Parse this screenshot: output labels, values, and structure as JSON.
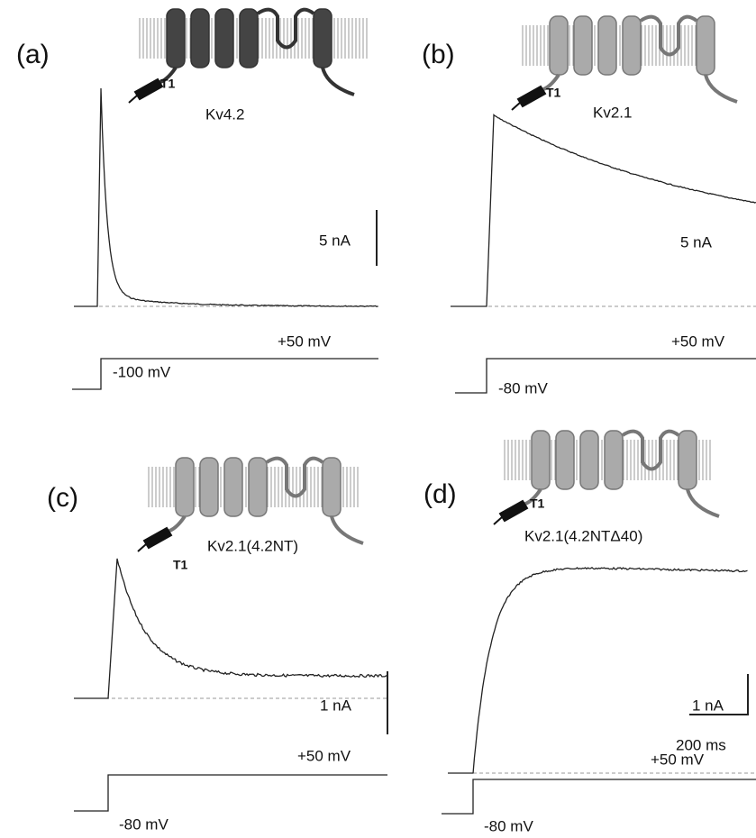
{
  "panels": [
    {
      "label": "(a)",
      "domain": "T1",
      "construct": "Kv4.2",
      "current_scale": "5 nA",
      "test_potential": "+50 mV",
      "holding_potential": "-100 mV"
    },
    {
      "label": "(b)",
      "domain": "T1",
      "construct": "Kv2.1",
      "current_scale": "5 nA",
      "test_potential": "+50 mV",
      "holding_potential": "-80 mV"
    },
    {
      "label": "(c)",
      "domain": "T1",
      "construct": "Kv2.1(4.2NT)",
      "current_scale": "1 nA",
      "test_potential": "+50 mV",
      "holding_potential": "-80 mV"
    },
    {
      "label": "(d)",
      "domain": "T1",
      "construct": "Kv2.1(4.2NTΔ40)",
      "current_scale": "1 nA",
      "time_scale": "200 ms",
      "test_potential": "+50 mV",
      "holding_potential": "-80 mV"
    }
  ]
}
